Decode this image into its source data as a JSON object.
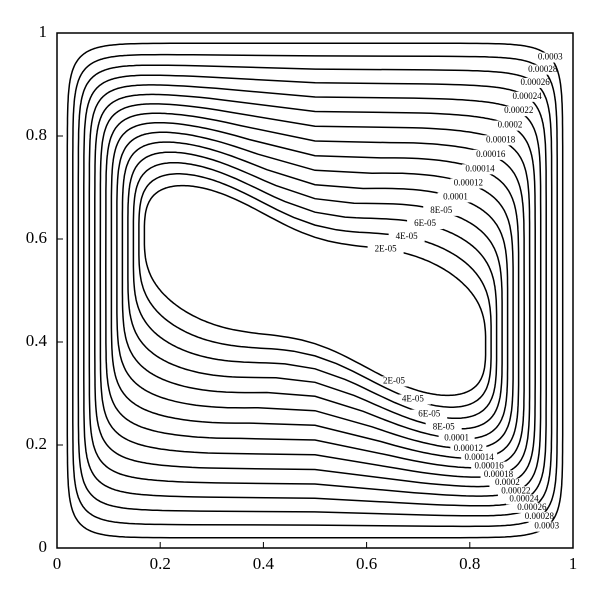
{
  "chart_data": {
    "type": "contour",
    "xlim": [
      0,
      1
    ],
    "ylim": [
      0,
      1
    ],
    "xticks": [
      0,
      0.2,
      0.4,
      0.6,
      0.8,
      1
    ],
    "yticks": [
      0,
      0.2,
      0.4,
      0.6,
      0.8,
      1
    ],
    "color": "#000000",
    "levels": [
      {
        "value": 2e-05,
        "label": "2E-05"
      },
      {
        "value": 4e-05,
        "label": "4E-05"
      },
      {
        "value": 6e-05,
        "label": "6E-05"
      },
      {
        "value": 8e-05,
        "label": "8E-05"
      },
      0.0001,
      0.00012,
      0.00014,
      0.00016,
      0.00018,
      0.0002,
      0.00022,
      0.00024,
      0.00026,
      0.00028,
      0.0003
    ]
  }
}
